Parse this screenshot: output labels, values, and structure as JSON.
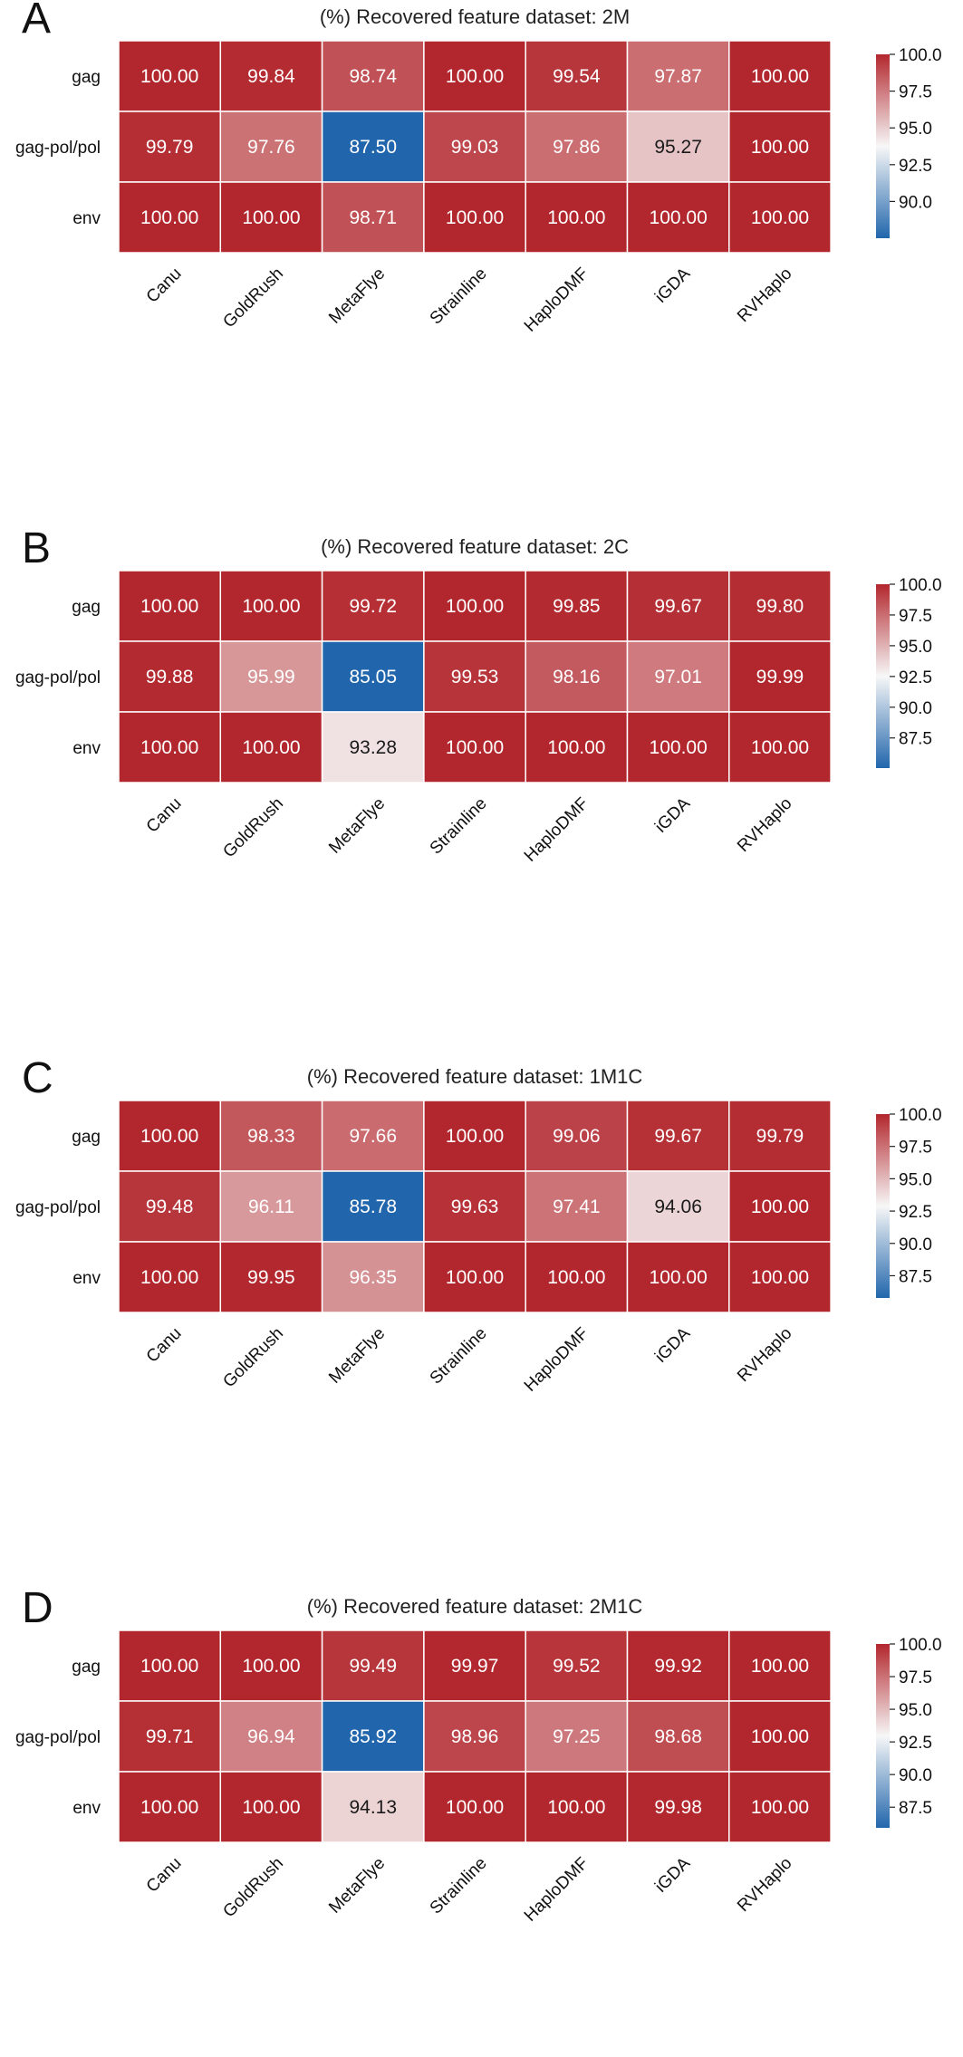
{
  "chart_data": [
    {
      "type": "heatmap",
      "panel_label": "A",
      "title": "(%) Recovered feature dataset: 2M",
      "rows": [
        "gag",
        "gag-pol/pol",
        "env"
      ],
      "columns": [
        "Canu",
        "GoldRush",
        "MetaFlye",
        "Strainline",
        "HaploDMF",
        "iGDA",
        "RVHaplo"
      ],
      "values": [
        [
          "100.00",
          "99.84",
          "98.74",
          "100.00",
          "99.54",
          "97.87",
          "100.00"
        ],
        [
          "99.79",
          "97.76",
          "87.50",
          "99.03",
          "97.86",
          "95.27",
          "100.00"
        ],
        [
          "100.00",
          "100.00",
          "98.71",
          "100.00",
          "100.00",
          "100.00",
          "100.00"
        ]
      ],
      "colorbar": {
        "range": [
          87.5,
          100.0
        ],
        "ticks": [
          "100.0",
          "97.5",
          "95.0",
          "92.5",
          "90.0"
        ]
      }
    },
    {
      "type": "heatmap",
      "panel_label": "B",
      "title": "(%) Recovered feature dataset: 2C",
      "rows": [
        "gag",
        "gag-pol/pol",
        "env"
      ],
      "columns": [
        "Canu",
        "GoldRush",
        "MetaFlye",
        "Strainline",
        "HaploDMF",
        "iGDA",
        "RVHaplo"
      ],
      "values": [
        [
          "100.00",
          "100.00",
          "99.72",
          "100.00",
          "99.85",
          "99.67",
          "99.80"
        ],
        [
          "99.88",
          "95.99",
          "85.05",
          "99.53",
          "98.16",
          "97.01",
          "99.99"
        ],
        [
          "100.00",
          "100.00",
          "93.28",
          "100.00",
          "100.00",
          "100.00",
          "100.00"
        ]
      ],
      "colorbar": {
        "range": [
          85.05,
          100.0
        ],
        "ticks": [
          "100.0",
          "97.5",
          "95.0",
          "92.5",
          "90.0",
          "87.5"
        ]
      }
    },
    {
      "type": "heatmap",
      "panel_label": "C",
      "title": "(%) Recovered feature dataset: 1M1C",
      "rows": [
        "gag",
        "gag-pol/pol",
        "env"
      ],
      "columns": [
        "Canu",
        "GoldRush",
        "MetaFlye",
        "Strainline",
        "HaploDMF",
        "iGDA",
        "RVHaplo"
      ],
      "values": [
        [
          "100.00",
          "98.33",
          "97.66",
          "100.00",
          "99.06",
          "99.67",
          "99.79"
        ],
        [
          "99.48",
          "96.11",
          "85.78",
          "99.63",
          "97.41",
          "94.06",
          "100.00"
        ],
        [
          "100.00",
          "99.95",
          "96.35",
          "100.00",
          "100.00",
          "100.00",
          "100.00"
        ]
      ],
      "colorbar": {
        "range": [
          85.78,
          100.0
        ],
        "ticks": [
          "100.0",
          "97.5",
          "95.0",
          "92.5",
          "90.0",
          "87.5"
        ]
      }
    },
    {
      "type": "heatmap",
      "panel_label": "D",
      "title": "(%) Recovered feature dataset: 2M1C",
      "rows": [
        "gag",
        "gag-pol/pol",
        "env"
      ],
      "columns": [
        "Canu",
        "GoldRush",
        "MetaFlye",
        "Strainline",
        "HaploDMF",
        "iGDA",
        "RVHaplo"
      ],
      "values": [
        [
          "100.00",
          "100.00",
          "99.49",
          "99.97",
          "99.52",
          "99.92",
          "100.00"
        ],
        [
          "99.71",
          "96.94",
          "85.92",
          "98.96",
          "97.25",
          "98.68",
          "100.00"
        ],
        [
          "100.00",
          "100.00",
          "94.13",
          "100.00",
          "100.00",
          "99.98",
          "100.00"
        ]
      ],
      "colorbar": {
        "range": [
          85.92,
          100.0
        ],
        "ticks": [
          "100.0",
          "97.5",
          "95.0",
          "92.5",
          "90.0",
          "87.5"
        ]
      }
    }
  ],
  "colors": {
    "high": "#b2272d",
    "mid": "#f7f7f7",
    "low": "#2166ac",
    "dark_text": "#1a1a1a",
    "light_text": "#ffffff"
  }
}
